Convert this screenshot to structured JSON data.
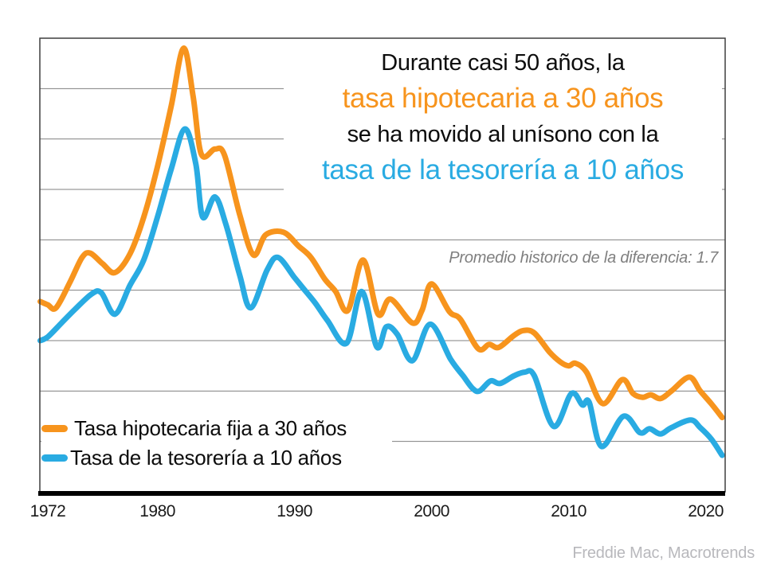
{
  "title": {
    "line1": "Durante casi 50 años, la",
    "line2": "tasa hipotecaria a 30 años",
    "line3": "se ha movido al unísono con la",
    "line4": "tasa de la tesorería a 10 años"
  },
  "annotation": "Promedio historico de la diferencia: 1.7",
  "source": "Freddie Mac, Macrotrends",
  "legend": {
    "items": [
      {
        "label": "Tasa hipotecaria fija a 30 años",
        "series": "mortgage-30yr"
      },
      {
        "label": "Tasa de la tesorería a 10 años",
        "series": "treasury-10yr"
      }
    ]
  },
  "colors": {
    "mortgage_orange": "#F7941D",
    "treasury_cyan": "#29ABE2",
    "title_black": "#0d0d0d",
    "gridline": "#808080",
    "plot_border": "#3f3f3f",
    "axis_black": "#000000",
    "annotation_gray": "#7f7f7f",
    "tick_text": "#1a1a1a",
    "source_gray": "#b8b8bc"
  },
  "chart_data": {
    "type": "line",
    "x_axis": {
      "ticks": [
        1972,
        1980,
        1990,
        2000,
        2010,
        2020
      ],
      "range": [
        1971.4,
        2021.4
      ]
    },
    "y_axis": {
      "range": [
        0,
        18
      ],
      "gridline_step": 2,
      "unit": "percent",
      "labels_visible": false
    },
    "grid": true,
    "legend_position": "bottom-left-inside",
    "series": [
      {
        "name": "Tasa hipotecaria fija a 30 años",
        "color_key": "mortgage_orange",
        "points": [
          [
            1971.45,
            7.55
          ],
          [
            1972,
            7.42
          ],
          [
            1972.6,
            7.3
          ],
          [
            1973.6,
            8.3
          ],
          [
            1974.5,
            9.3
          ],
          [
            1975.1,
            9.47
          ],
          [
            1976,
            9.05
          ],
          [
            1976.9,
            8.7
          ],
          [
            1978,
            9.45
          ],
          [
            1979,
            10.9
          ],
          [
            1980,
            12.9
          ],
          [
            1981,
            15.3
          ],
          [
            1981.9,
            17.6
          ],
          [
            1982.6,
            15.7
          ],
          [
            1983.2,
            13.4
          ],
          [
            1984.2,
            13.6
          ],
          [
            1984.9,
            13.35
          ],
          [
            1986,
            11.0
          ],
          [
            1987,
            9.4
          ],
          [
            1987.9,
            10.2
          ],
          [
            1989.2,
            10.3
          ],
          [
            1990.3,
            9.75
          ],
          [
            1991.2,
            9.3
          ],
          [
            1992.2,
            8.45
          ],
          [
            1993,
            7.95
          ],
          [
            1993.9,
            7.2
          ],
          [
            1995,
            9.2
          ],
          [
            1996.1,
            7.05
          ],
          [
            1997,
            7.65
          ],
          [
            1998.6,
            6.7
          ],
          [
            1999.3,
            7.2
          ],
          [
            2000,
            8.25
          ],
          [
            2001.3,
            7.15
          ],
          [
            2002.1,
            6.85
          ],
          [
            2003.4,
            5.68
          ],
          [
            2004.2,
            5.85
          ],
          [
            2004.9,
            5.73
          ],
          [
            2006,
            6.2
          ],
          [
            2006.7,
            6.4
          ],
          [
            2007.5,
            6.3
          ],
          [
            2008.6,
            5.55
          ],
          [
            2009.4,
            5.15
          ],
          [
            2010,
            5.0
          ],
          [
            2010.5,
            5.1
          ],
          [
            2011.3,
            4.75
          ],
          [
            2012.5,
            3.5
          ],
          [
            2013.9,
            4.45
          ],
          [
            2014.7,
            3.9
          ],
          [
            2015.4,
            3.75
          ],
          [
            2016,
            3.85
          ],
          [
            2016.7,
            3.7
          ],
          [
            2017.5,
            4.0
          ],
          [
            2018.8,
            4.55
          ],
          [
            2019.6,
            4.0
          ],
          [
            2020.4,
            3.5
          ],
          [
            2021.2,
            2.95
          ]
        ]
      },
      {
        "name": "Tasa de la tesorería a 10 años",
        "color_key": "treasury_cyan",
        "points": [
          [
            1971.45,
            6.0
          ],
          [
            1972,
            6.15
          ],
          [
            1973,
            6.7
          ],
          [
            1974,
            7.25
          ],
          [
            1975.2,
            7.85
          ],
          [
            1975.9,
            7.9
          ],
          [
            1976.9,
            7.05
          ],
          [
            1978,
            8.2
          ],
          [
            1979,
            9.2
          ],
          [
            1980,
            10.9
          ],
          [
            1981,
            12.8
          ],
          [
            1982,
            14.4
          ],
          [
            1982.8,
            13.0
          ],
          [
            1983.3,
            10.9
          ],
          [
            1984.2,
            11.7
          ],
          [
            1985,
            10.6
          ],
          [
            1986,
            8.6
          ],
          [
            1986.8,
            7.3
          ],
          [
            1988,
            8.8
          ],
          [
            1988.8,
            9.3
          ],
          [
            1990,
            8.5
          ],
          [
            1990.6,
            8.1
          ],
          [
            1991.5,
            7.5
          ],
          [
            1992.4,
            6.8
          ],
          [
            1993.8,
            5.9
          ],
          [
            1994.9,
            7.95
          ],
          [
            1996,
            5.75
          ],
          [
            1996.7,
            6.55
          ],
          [
            1997.5,
            6.25
          ],
          [
            1998.6,
            5.2
          ],
          [
            1999.9,
            6.65
          ],
          [
            2001.4,
            5.25
          ],
          [
            2002.3,
            4.6
          ],
          [
            2003,
            4.1
          ],
          [
            2003.5,
            4.0
          ],
          [
            2004.3,
            4.4
          ],
          [
            2005,
            4.3
          ],
          [
            2006,
            4.6
          ],
          [
            2006.8,
            4.75
          ],
          [
            2007.5,
            4.6
          ],
          [
            2008.9,
            2.6
          ],
          [
            2010.2,
            3.9
          ],
          [
            2011,
            3.45
          ],
          [
            2011.5,
            3.55
          ],
          [
            2012.4,
            1.8
          ],
          [
            2014,
            3.0
          ],
          [
            2015.2,
            2.35
          ],
          [
            2015.9,
            2.5
          ],
          [
            2016.7,
            2.3
          ],
          [
            2017.5,
            2.55
          ],
          [
            2018.9,
            2.85
          ],
          [
            2019.6,
            2.55
          ],
          [
            2020.4,
            2.1
          ],
          [
            2021.2,
            1.45
          ]
        ]
      }
    ]
  }
}
